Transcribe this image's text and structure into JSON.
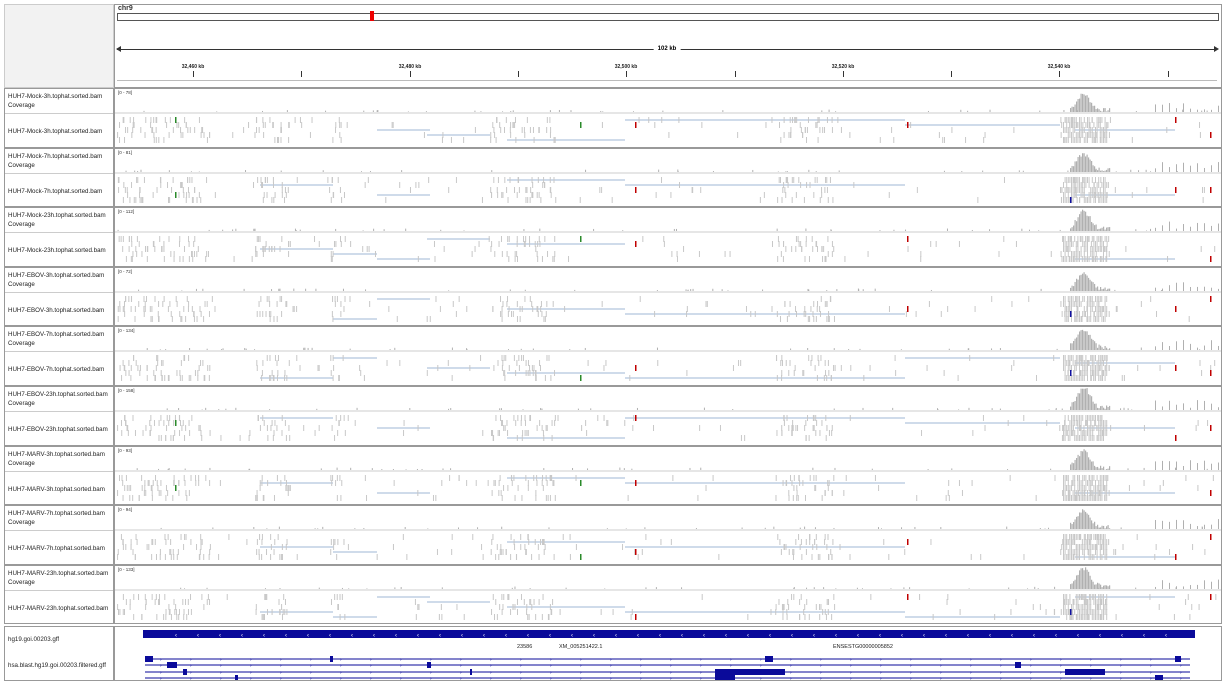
{
  "ruler": {
    "chromosome": "chr9",
    "span_label": "102 kb",
    "ticks": [
      "32,460 kb",
      "32,480 kb",
      "32,500 kb",
      "32,520 kb",
      "32,540 kb"
    ]
  },
  "colors": {
    "coverage": "#b0b0b0",
    "read": "#c8c8c8",
    "splice": "#9fb7d6",
    "mismatch_red": "#c00000",
    "mismatch_green": "#2a8a2a",
    "mismatch_blue": "#1010a0",
    "feature": "#0a0a9a",
    "ideogram_marker": "#ee0000"
  },
  "samples": [
    {
      "coverage_label": "HUH7-Mock-3h.tophat.sorted.bam Coverage",
      "bam_label": "HUH7-Mock-3h.tophat.sorted.bam",
      "range": "[0 - 78]",
      "max": 78
    },
    {
      "coverage_label": "HUH7-Mock-7h.tophat.sorted.bam Coverage",
      "bam_label": "HUH7-Mock-7h.tophat.sorted.bam",
      "range": "[0 - 81]",
      "max": 81
    },
    {
      "coverage_label": "HUH7-Mock-23h.tophat.sorted.bam Coverage",
      "bam_label": "HUH7-Mock-23h.tophat.sorted.bam",
      "range": "[0 - 112]",
      "max": 112
    },
    {
      "coverage_label": "HUH7-EBOV-3h.tophat.sorted.bam Coverage",
      "bam_label": "HUH7-EBOV-3h.tophat.sorted.bam",
      "range": "[0 - 72]",
      "max": 72
    },
    {
      "coverage_label": "HUH7-EBOV-7h.tophat.sorted.bam Coverage",
      "bam_label": "HUH7-EBOV-7h.tophat.sorted.bam",
      "range": "[0 - 134]",
      "max": 134
    },
    {
      "coverage_label": "HUH7-EBOV-23h.tophat.sorted.bam Coverage",
      "bam_label": "HUH7-EBOV-23h.tophat.sorted.bam",
      "range": "[0 - 158]",
      "max": 158
    },
    {
      "coverage_label": "HUH7-MARV-3h.tophat.sorted.bam Coverage",
      "bam_label": "HUH7-MARV-3h.tophat.sorted.bam",
      "range": "[0 - 93]",
      "max": 93
    },
    {
      "coverage_label": "HUH7-MARV-7h.tophat.sorted.bam Coverage",
      "bam_label": "HUH7-MARV-7h.tophat.sorted.bam",
      "range": "[0 - 94]",
      "max": 94
    },
    {
      "coverage_label": "HUH7-MARV-23h.tophat.sorted.bam Coverage",
      "bam_label": "HUH7-MARV-23h.tophat.sorted.bam",
      "range": "[0 - 133]",
      "max": 133
    }
  ],
  "feature_tracks": [
    {
      "label": "hg19.goi.00203.gff"
    },
    {
      "label": "hsa.blast.hg19.goi.00203.filtered.gff"
    }
  ],
  "feature_labels": [
    "23586",
    "XM_005251422.1",
    "ENSESTG00000005852"
  ]
}
